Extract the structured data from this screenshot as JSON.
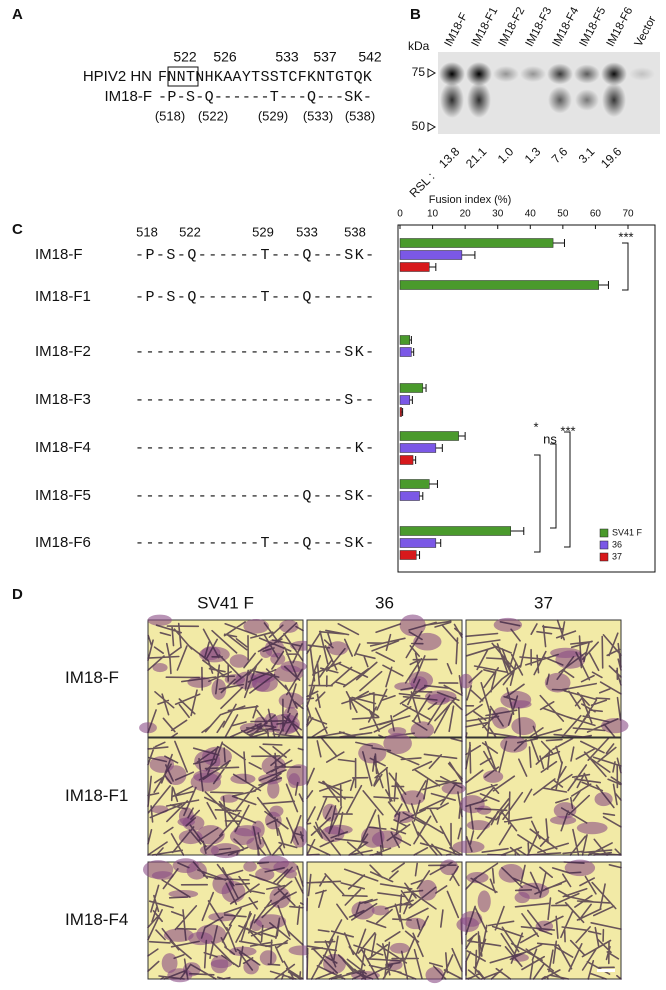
{
  "panel_a": {
    "label": "A",
    "positions": [
      522,
      526,
      533,
      537,
      542
    ],
    "rows": [
      {
        "name": "HPIV2 HN",
        "sequence": "FNNTNHKAAYTSSTCFKNTGTQK"
      },
      {
        "name": "IM18-F",
        "sequence": "-P-S-Q------T---Q---SK-"
      }
    ],
    "residues": [
      "(518)",
      "(522)",
      "(529)",
      "(533)",
      "(538)"
    ]
  },
  "panel_b": {
    "label": "B",
    "unit": "kDa",
    "markers": [
      75,
      50
    ],
    "lanes": [
      "IM18-F",
      "IM18-F1",
      "IM18-F2",
      "IM18-F3",
      "IM18-F4",
      "IM18-F5",
      "IM18-F6",
      "Vector"
    ],
    "rsl_label": "RSL :",
    "rsl": [
      "13.8",
      "21.1",
      "1.0",
      "1.3",
      "7.6",
      "3.1",
      "19.6"
    ]
  },
  "panel_c": {
    "label": "C",
    "positions": [
      518,
      522,
      529,
      533,
      538
    ],
    "sequences": [
      "-P-S-Q------T---Q---SK-",
      "-P-S-Q------T---Q------",
      "--------------------SK-",
      "--------------------S--",
      "---------------------K-",
      "----------------Q---SK-",
      "------------T---Q---SK-"
    ]
  },
  "chart_data": {
    "type": "bar",
    "orientation": "horizontal",
    "xlabel": "Fusion index (%)",
    "categories": [
      "IM18-F",
      "IM18-F1",
      "IM18-F2",
      "IM18-F3",
      "IM18-F4",
      "IM18-F5",
      "IM18-F6"
    ],
    "series": [
      {
        "name": "SV41 F",
        "color": "#4a9a2c",
        "values": [
          47,
          61,
          3,
          7,
          18,
          9,
          34
        ],
        "errors": [
          3.5,
          3,
          0.5,
          1,
          2,
          2.5,
          4
        ]
      },
      {
        "name": "36",
        "color": "#7b58e6",
        "values": [
          19,
          null,
          3.5,
          3,
          11,
          6,
          11
        ],
        "errors": [
          4,
          null,
          0.7,
          0.8,
          2,
          1,
          1.5
        ]
      },
      {
        "name": "37",
        "color": "#d7191c",
        "values": [
          9,
          null,
          null,
          0.5,
          4,
          null,
          5
        ],
        "errors": [
          2,
          null,
          null,
          0.3,
          0.8,
          null,
          1
        ]
      }
    ],
    "xlim": [
      0,
      70
    ],
    "xticks": [
      0,
      10,
      20,
      30,
      40,
      50,
      60,
      70
    ],
    "legend": "bottom-right",
    "annotations": [
      "***",
      "ns",
      "***",
      "*"
    ]
  },
  "panel_d": {
    "label": "D",
    "columns": [
      "SV41 F",
      "36",
      "37"
    ],
    "rows": [
      "IM18-F",
      "IM18-F1",
      "IM18-F4"
    ]
  }
}
